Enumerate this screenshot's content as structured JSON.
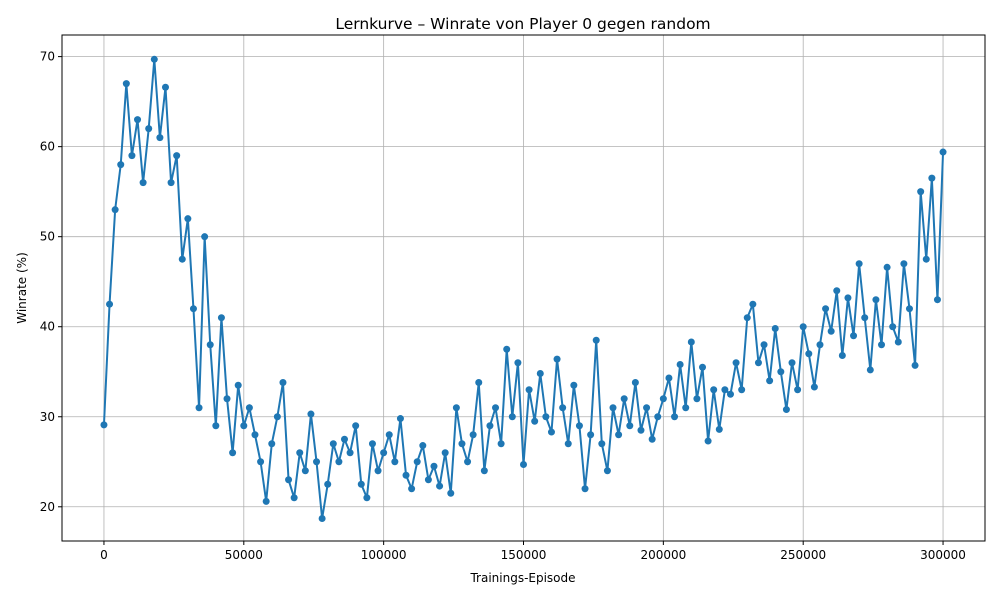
{
  "chart_data": {
    "type": "line",
    "title": "Lernkurve – Winrate von Player 0 gegen random",
    "x_label": "Trainings-Episode",
    "y_label": "Winrate (%)",
    "x": [
      0,
      2000,
      4000,
      6000,
      8000,
      10000,
      12000,
      14000,
      16000,
      18000,
      20000,
      22000,
      24000,
      26000,
      28000,
      30000,
      32000,
      34000,
      36000,
      38000,
      40000,
      42000,
      44000,
      46000,
      48000,
      50000,
      52000,
      54000,
      56000,
      58000,
      60000,
      62000,
      64000,
      66000,
      68000,
      70000,
      72000,
      74000,
      76000,
      78000,
      80000,
      82000,
      84000,
      86000,
      88000,
      90000,
      92000,
      94000,
      96000,
      98000,
      100000,
      102000,
      104000,
      106000,
      108000,
      110000,
      112000,
      114000,
      116000,
      118000,
      120000,
      122000,
      124000,
      126000,
      128000,
      130000,
      132000,
      134000,
      136000,
      138000,
      140000,
      142000,
      144000,
      146000,
      148000,
      150000,
      152000,
      154000,
      156000,
      158000,
      160000,
      162000,
      164000,
      166000,
      168000,
      170000,
      172000,
      174000,
      176000,
      178000,
      180000,
      182000,
      184000,
      186000,
      188000,
      190000,
      192000,
      194000,
      196000,
      198000,
      200000,
      202000,
      204000,
      206000,
      208000,
      210000,
      212000,
      214000,
      216000,
      218000,
      220000,
      222000,
      224000,
      226000,
      228000,
      230000,
      232000,
      234000,
      236000,
      238000,
      240000,
      242000,
      244000,
      246000,
      248000,
      250000,
      252000,
      254000,
      256000,
      258000,
      260000,
      262000,
      264000,
      266000,
      268000,
      270000,
      272000,
      274000,
      276000,
      278000,
      280000,
      282000,
      284000,
      286000,
      288000,
      290000,
      292000,
      294000,
      296000,
      298000,
      300000
    ],
    "series": [
      {
        "name": "Winrate",
        "color": "#1f77b4",
        "values": [
          29.1,
          42.5,
          53,
          58,
          67,
          59,
          63,
          56,
          62,
          69.7,
          61,
          66.6,
          56,
          59,
          47.5,
          52,
          42,
          31,
          50,
          38,
          29,
          41,
          32,
          26,
          33.5,
          29,
          31,
          28,
          25,
          20.6,
          27,
          30,
          33.8,
          23,
          21,
          26,
          24,
          30.3,
          25,
          18.7,
          22.5,
          27,
          25,
          27.5,
          26,
          29,
          22.5,
          21,
          27,
          24,
          26,
          28,
          25,
          29.8,
          23.5,
          22,
          25,
          26.8,
          23,
          24.5,
          22.3,
          26,
          21.5,
          31,
          27,
          25,
          28,
          33.8,
          24,
          29,
          31,
          27,
          37.5,
          30,
          36,
          24.7,
          33,
          29.5,
          34.8,
          30,
          28.3,
          36.4,
          31,
          27,
          33.5,
          29,
          22,
          28,
          38.5,
          27,
          24,
          31,
          28,
          32,
          29,
          33.8,
          28.5,
          31,
          27.5,
          30,
          32,
          34.3,
          30,
          35.8,
          31,
          38.3,
          32,
          35.5,
          27.3,
          33,
          28.6,
          33,
          32.5,
          36,
          33,
          41,
          42.5,
          36,
          38,
          34,
          39.8,
          35,
          30.8,
          36,
          33,
          40,
          37,
          33.3,
          38,
          42,
          39.5,
          44,
          36.8,
          43.2,
          39,
          47,
          41,
          35.2,
          43,
          38,
          46.6,
          40,
          38.3,
          47,
          42,
          35.7,
          55,
          47.5,
          56.5,
          43,
          59.4
        ]
      }
    ],
    "xlim": [
      -15000,
      315000
    ],
    "ylim": [
      16.2,
      72.4
    ],
    "xticks": [
      0,
      50000,
      100000,
      150000,
      200000,
      250000,
      300000
    ],
    "yticks": [
      20,
      30,
      40,
      50,
      60,
      70
    ],
    "grid": true
  }
}
